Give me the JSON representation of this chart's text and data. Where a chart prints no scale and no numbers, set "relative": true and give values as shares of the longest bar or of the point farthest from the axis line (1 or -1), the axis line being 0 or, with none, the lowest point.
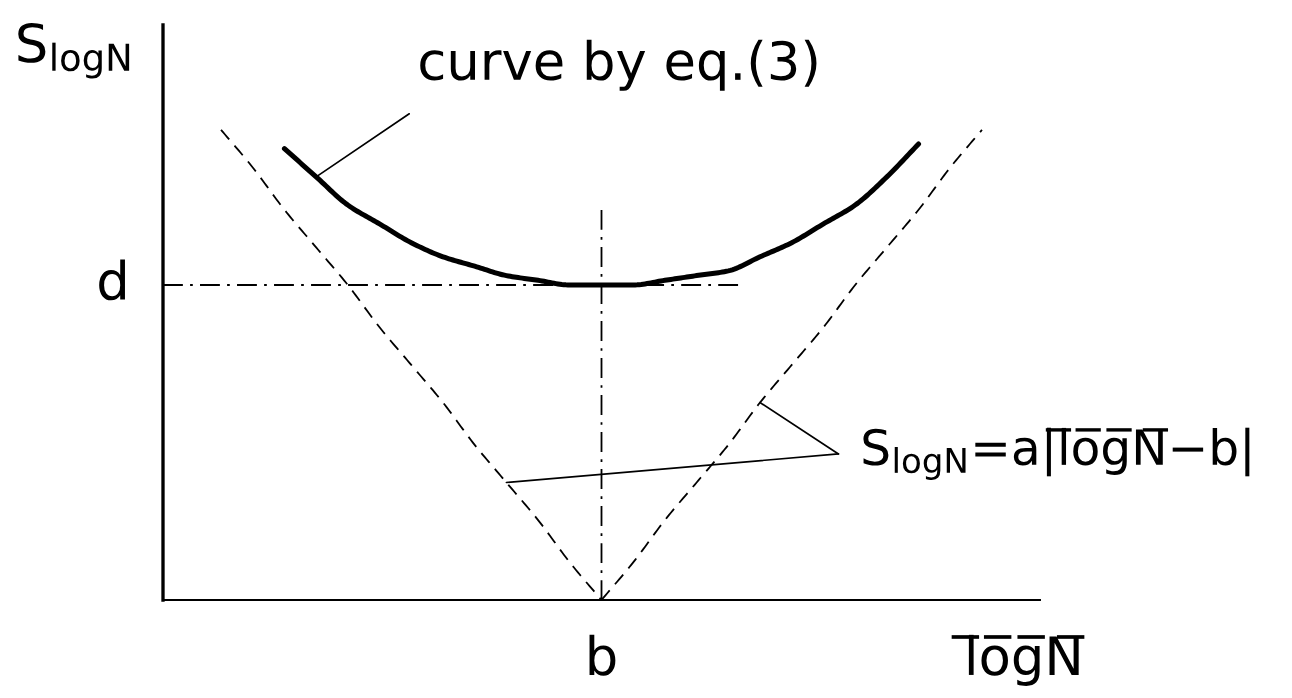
{
  "chart_data": {
    "type": "line",
    "relative": true,
    "xlabel": "l̅o̅g̅N̅",
    "ylabel": "S$_{logN}$",
    "categories": [
      null,
      null,
      null,
      null,
      null,
      null,
      null,
      null,
      null,
      null,
      null,
      null,
      null,
      null,
      null,
      null,
      null,
      null,
      null,
      null,
      null,
      null,
      null,
      null,
      null
    ],
    "series": [
      {
        "color": "#000000",
        "line_style": "solid",
        "values": [
          null,
          null,
          0.96,
          0.9,
          0.84,
          0.8,
          0.76,
          0.73,
          0.71,
          0.69,
          0.68,
          0.67,
          0.67,
          0.67,
          0.68,
          0.69,
          0.7,
          0.73,
          0.76,
          0.8,
          0.84,
          0.9,
          0.97,
          null,
          null
        ]
      },
      {
        "color": "#000000",
        "line_style": "dashed",
        "values": [
          1,
          0.92,
          0.83,
          0.75,
          0.67,
          0.58,
          0.5,
          0.42,
          0.33,
          0.25,
          0.17,
          0.08,
          0,
          null,
          null,
          null,
          null,
          null,
          null,
          null,
          null,
          null,
          null,
          null,
          null
        ]
      },
      {
        "color": "#000000",
        "line_style": "dashed",
        "values": [
          null,
          null,
          null,
          null,
          null,
          null,
          null,
          null,
          null,
          null,
          null,
          null,
          0,
          0.08,
          0.17,
          0.25,
          0.33,
          0.42,
          0.5,
          0.58,
          0.67,
          0.75,
          0.83,
          0.92,
          1
        ]
      }
    ],
    "ref_lines": [
      {
        "axis": "y",
        "value": 0.67,
        "label": "d",
        "line_style": "dashdot"
      }
    ],
    "annotations": [
      "curve by eq.(3)",
      "S$_{logN}$=a|l̅o̅g̅N̅−b|",
      "b"
    ]
  }
}
